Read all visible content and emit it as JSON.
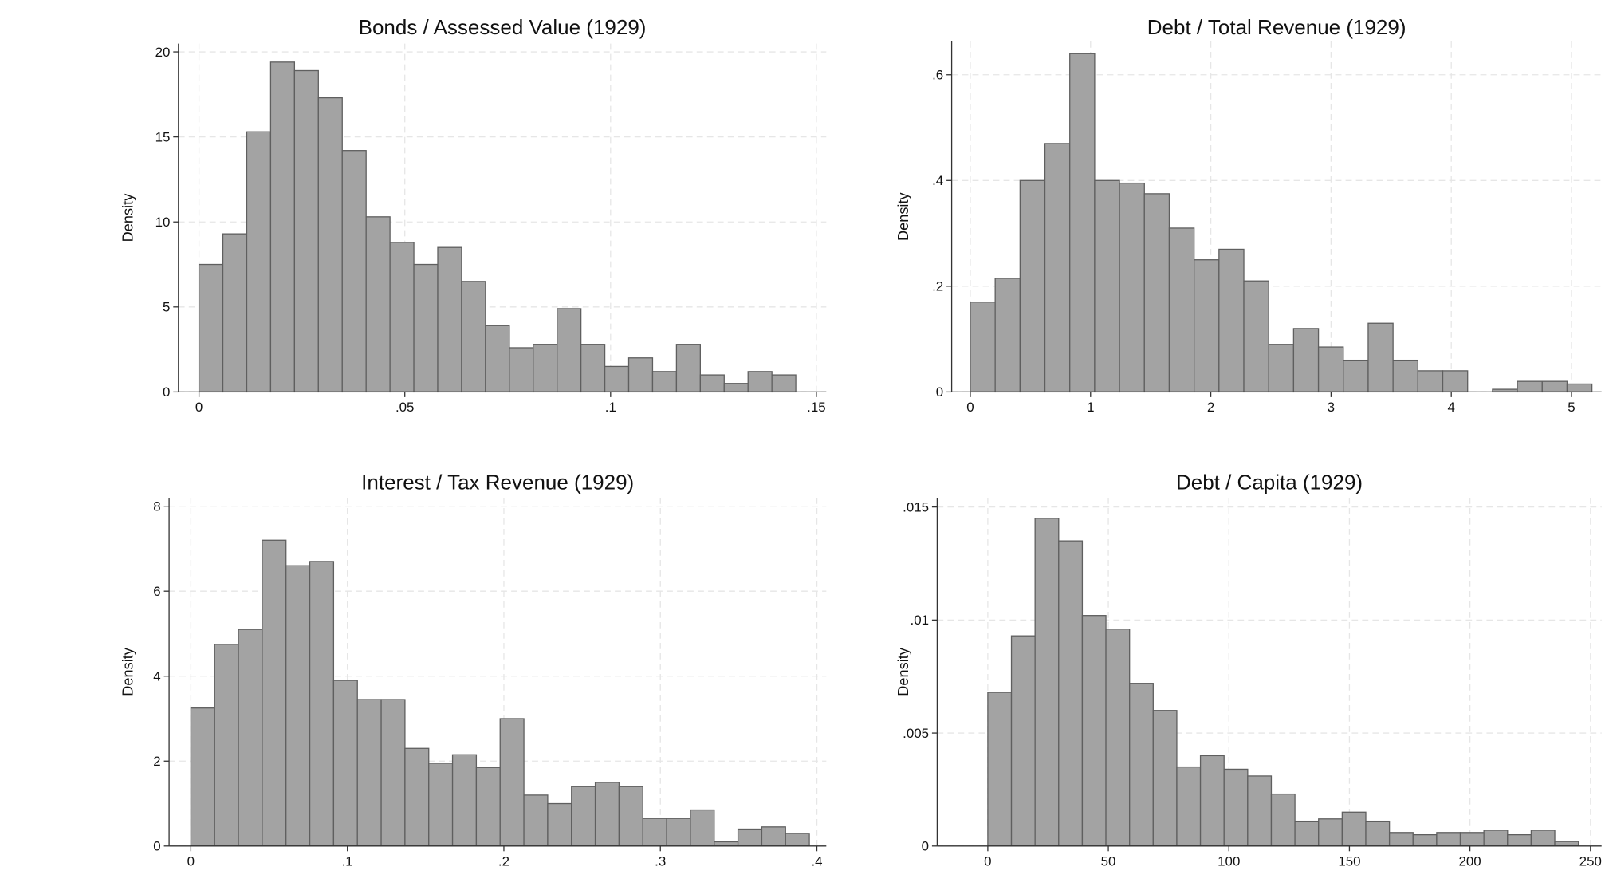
{
  "chart_data": [
    {
      "type": "histogram",
      "title": "Bonds / Assessed Value (1929)",
      "ylabel": "Density",
      "color": "#a3a3a3",
      "grid": true,
      "bins": [
        0,
        0.0058,
        0.0116,
        0.0174,
        0.0232,
        0.029,
        0.0348,
        0.0406,
        0.0464,
        0.0522,
        0.058,
        0.0638,
        0.0696,
        0.0754,
        0.0812,
        0.087,
        0.0928,
        0.0986,
        0.1044,
        0.1102,
        0.116,
        0.1218,
        0.1276,
        0.1334,
        0.1392,
        0.145
      ],
      "values": [
        7.5,
        9.3,
        15.3,
        19.4,
        18.9,
        17.3,
        14.2,
        10.3,
        8.8,
        7.5,
        8.5,
        6.5,
        3.9,
        2.6,
        2.8,
        4.9,
        2.8,
        1.5,
        2.0,
        1.2,
        2.8,
        1.0,
        0.5,
        1.2,
        1.0
      ],
      "xlim": [
        -0.005,
        0.1524
      ],
      "ylim": [
        0,
        20.49
      ],
      "xticks": [
        0,
        {
          "value": 0.05,
          "label": ".05"
        },
        {
          "value": 0.1,
          "label": ".1"
        },
        {
          "value": 0.15,
          "label": ".15"
        }
      ],
      "yticks": [
        0,
        5,
        10,
        15,
        20
      ]
    },
    {
      "type": "histogram",
      "title": "Debt / Total Revenue (1929)",
      "ylabel": "Density",
      "color": "#a3a3a3",
      "grid": true,
      "bins": [
        0,
        0.2068,
        0.4136,
        0.6204,
        0.8272,
        1.034,
        1.2408,
        1.4476,
        1.6544,
        1.8612,
        2.068,
        2.2748,
        2.4816,
        2.6884,
        2.8952,
        3.102,
        3.3088,
        3.5156,
        3.7224,
        3.9292,
        4.136,
        4.3428,
        4.5496,
        4.7564,
        4.9632,
        5.17
      ],
      "values": [
        0.17,
        0.215,
        0.4,
        0.47,
        0.64,
        0.4,
        0.395,
        0.375,
        0.31,
        0.25,
        0.27,
        0.21,
        0.09,
        0.12,
        0.085,
        0.06,
        0.13,
        0.06,
        0.04,
        0.04,
        0,
        0.005,
        0.02,
        0.02,
        0.015
      ],
      "xlim": [
        -0.155,
        5.25
      ],
      "ylim": [
        0,
        0.663
      ],
      "xticks": [
        0,
        1,
        2,
        3,
        4,
        5
      ],
      "yticks": [
        0,
        {
          "value": 0.2,
          "label": ".2"
        },
        {
          "value": 0.4,
          "label": ".4"
        },
        {
          "value": 0.6,
          "label": ".6"
        }
      ]
    },
    {
      "type": "histogram",
      "title": "Interest / Tax Revenue (1929)",
      "ylabel": "Density",
      "color": "#a3a3a3",
      "grid": true,
      "bins": [
        0,
        0.0152,
        0.0304,
        0.0456,
        0.0608,
        0.076,
        0.0912,
        0.1064,
        0.1216,
        0.1368,
        0.152,
        0.1672,
        0.1824,
        0.1976,
        0.2128,
        0.228,
        0.2432,
        0.2584,
        0.2736,
        0.2888,
        0.304,
        0.3192,
        0.3344,
        0.3496,
        0.3648,
        0.38,
        0.3952
      ],
      "values": [
        3.25,
        4.75,
        5.1,
        7.2,
        6.6,
        6.7,
        3.9,
        3.45,
        3.45,
        2.3,
        1.95,
        2.15,
        1.85,
        3.0,
        1.2,
        1.0,
        1.4,
        1.5,
        1.4,
        0.65,
        0.65,
        0.85,
        0.1,
        0.4,
        0.45,
        0.3
      ],
      "xlim": [
        -0.0139,
        0.406
      ],
      "ylim": [
        0,
        8.2
      ],
      "xticks": [
        0,
        {
          "value": 0.1,
          "label": ".1"
        },
        {
          "value": 0.2,
          "label": ".2"
        },
        {
          "value": 0.3,
          "label": ".3"
        },
        {
          "value": 0.4,
          "label": ".4"
        }
      ],
      "yticks": [
        0,
        2,
        4,
        6,
        8
      ]
    },
    {
      "type": "histogram",
      "title": "Debt / Capita (1929)",
      "ylabel": "Density",
      "color": "#a3a3a3",
      "grid": true,
      "bins": [
        0,
        9.8,
        19.6,
        29.4,
        39.2,
        49,
        58.8,
        68.6,
        78.4,
        88.2,
        98,
        107.8,
        117.6,
        127.4,
        137.2,
        147,
        156.8,
        166.6,
        176.4,
        186.2,
        196,
        205.8,
        215.6,
        225.4,
        235.2,
        245
      ],
      "values": [
        0.0068,
        0.0093,
        0.0145,
        0.0135,
        0.0102,
        0.0096,
        0.0072,
        0.006,
        0.0035,
        0.004,
        0.0034,
        0.0031,
        0.0023,
        0.0011,
        0.0012,
        0.0015,
        0.0011,
        0.0006,
        0.0005,
        0.0006,
        0.0006,
        0.0007,
        0.0005,
        0.0007,
        0.0002
      ],
      "xlim": [
        -21,
        254.6
      ],
      "ylim": [
        0,
        0.01541
      ],
      "xticks": [
        0,
        50,
        100,
        150,
        200,
        250
      ],
      "yticks": [
        0,
        {
          "value": 0.005,
          "label": ".005"
        },
        {
          "value": 0.01,
          "label": ".01"
        },
        {
          "value": 0.015,
          "label": ".015"
        }
      ]
    }
  ]
}
